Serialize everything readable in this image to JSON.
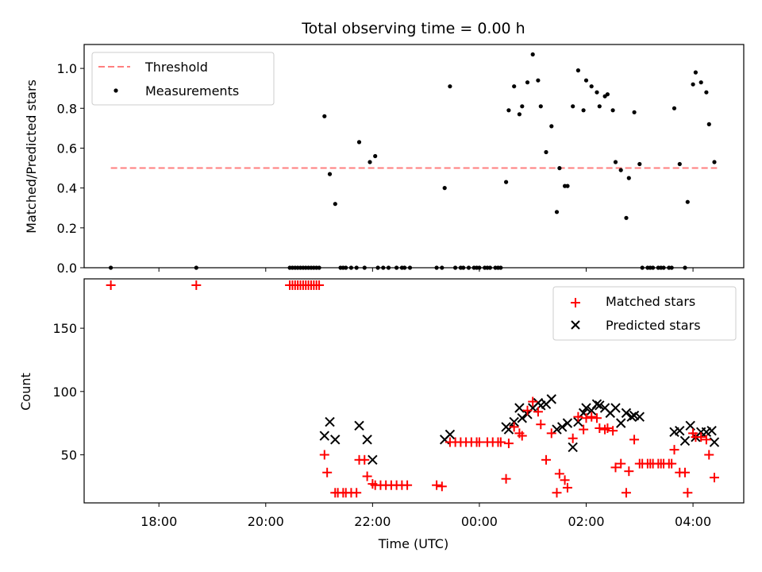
{
  "chart_data": [
    {
      "type": "scatter",
      "title": "Total observing time = 0.00 h",
      "xlabel": "",
      "ylabel": "Matched/Predicted stars",
      "x_unit": "hours UTC (values past 24 are after midnight)",
      "xlim": [
        16.6,
        28.95
      ],
      "ylim": [
        0,
        1.12
      ],
      "yticks": [
        "0.0",
        "0.2",
        "0.4",
        "0.6",
        "0.8",
        "1.0"
      ],
      "legend_position": "top-left",
      "threshold": {
        "name": "Threshold",
        "value": 0.5,
        "x_range": [
          17.1,
          28.45
        ],
        "color": "#ff7f7f",
        "style": "dashed"
      },
      "series": [
        {
          "name": "Measurements",
          "color": "#000000",
          "marker": "dot",
          "points": [
            [
              17.1,
              0
            ],
            [
              18.7,
              0
            ],
            [
              20.45,
              0
            ],
            [
              20.5,
              0
            ],
            [
              20.55,
              0
            ],
            [
              20.6,
              0
            ],
            [
              20.65,
              0
            ],
            [
              20.7,
              0
            ],
            [
              20.75,
              0
            ],
            [
              20.8,
              0
            ],
            [
              20.85,
              0
            ],
            [
              20.9,
              0
            ],
            [
              20.95,
              0
            ],
            [
              21.0,
              0
            ],
            [
              21.1,
              0.76
            ],
            [
              21.2,
              0.47
            ],
            [
              21.3,
              0.32
            ],
            [
              21.4,
              0
            ],
            [
              21.45,
              0
            ],
            [
              21.5,
              0
            ],
            [
              21.6,
              0
            ],
            [
              21.7,
              0
            ],
            [
              21.75,
              0.63
            ],
            [
              21.85,
              0
            ],
            [
              21.95,
              0.53
            ],
            [
              22.05,
              0.56
            ],
            [
              22.1,
              0
            ],
            [
              22.2,
              0
            ],
            [
              22.3,
              0
            ],
            [
              22.45,
              0
            ],
            [
              22.55,
              0
            ],
            [
              22.6,
              0
            ],
            [
              22.7,
              0
            ],
            [
              23.2,
              0
            ],
            [
              23.3,
              0
            ],
            [
              23.35,
              0.4
            ],
            [
              23.45,
              0.91
            ],
            [
              23.55,
              0
            ],
            [
              23.65,
              0
            ],
            [
              23.7,
              0
            ],
            [
              23.8,
              0
            ],
            [
              23.9,
              0
            ],
            [
              23.95,
              0
            ],
            [
              24.0,
              0
            ],
            [
              24.1,
              0
            ],
            [
              24.15,
              0
            ],
            [
              24.2,
              0
            ],
            [
              24.3,
              0
            ],
            [
              24.35,
              0
            ],
            [
              24.4,
              0
            ],
            [
              24.5,
              0.43
            ],
            [
              24.55,
              0.79
            ],
            [
              24.65,
              0.91
            ],
            [
              24.75,
              0.77
            ],
            [
              24.8,
              0.81
            ],
            [
              24.9,
              0.93
            ],
            [
              25.0,
              1.07
            ],
            [
              25.1,
              0.94
            ],
            [
              25.15,
              0.81
            ],
            [
              25.25,
              0.58
            ],
            [
              25.35,
              0.71
            ],
            [
              25.45,
              0.28
            ],
            [
              25.5,
              0.5
            ],
            [
              25.6,
              0.41
            ],
            [
              25.65,
              0.41
            ],
            [
              25.75,
              0.81
            ],
            [
              25.85,
              0.99
            ],
            [
              25.95,
              0.79
            ],
            [
              26.0,
              0.94
            ],
            [
              26.1,
              0.91
            ],
            [
              26.2,
              0.88
            ],
            [
              26.25,
              0.81
            ],
            [
              26.35,
              0.86
            ],
            [
              26.4,
              0.87
            ],
            [
              26.5,
              0.79
            ],
            [
              26.55,
              0.53
            ],
            [
              26.65,
              0.49
            ],
            [
              26.75,
              0.25
            ],
            [
              26.8,
              0.45
            ],
            [
              26.9,
              0.78
            ],
            [
              27.0,
              0.52
            ],
            [
              27.05,
              0
            ],
            [
              27.15,
              0
            ],
            [
              27.2,
              0
            ],
            [
              27.25,
              0
            ],
            [
              27.35,
              0
            ],
            [
              27.4,
              0
            ],
            [
              27.45,
              0
            ],
            [
              27.55,
              0
            ],
            [
              27.6,
              0
            ],
            [
              27.65,
              0.8
            ],
            [
              27.75,
              0.52
            ],
            [
              27.85,
              0
            ],
            [
              27.9,
              0.33
            ],
            [
              28.0,
              0.92
            ],
            [
              28.05,
              0.98
            ],
            [
              28.15,
              0.93
            ],
            [
              28.25,
              0.88
            ],
            [
              28.3,
              0.72
            ],
            [
              28.4,
              0.53
            ]
          ]
        }
      ]
    },
    {
      "type": "scatter",
      "title": "",
      "xlabel": "Time (UTC)",
      "ylabel": "Count",
      "x_unit": "hours UTC (values past 24 are after midnight)",
      "xlim": [
        16.6,
        28.95
      ],
      "ylim": [
        12,
        189
      ],
      "yticks": [
        "50",
        "100",
        "150"
      ],
      "xticks": [
        "18:00",
        "20:00",
        "22:00",
        "00:00",
        "02:00",
        "04:00"
      ],
      "legend_position": "top-right",
      "series": [
        {
          "name": "Matched stars",
          "color": "#ff0000",
          "marker": "plus",
          "points": [
            [
              17.1,
              184
            ],
            [
              18.7,
              184
            ],
            [
              20.45,
              184
            ],
            [
              20.5,
              184
            ],
            [
              20.55,
              184
            ],
            [
              20.6,
              184
            ],
            [
              20.65,
              184
            ],
            [
              20.7,
              184
            ],
            [
              20.75,
              184
            ],
            [
              20.8,
              184
            ],
            [
              20.85,
              184
            ],
            [
              20.9,
              184
            ],
            [
              20.95,
              184
            ],
            [
              21.0,
              184
            ],
            [
              21.1,
              50
            ],
            [
              21.15,
              36
            ],
            [
              21.3,
              20
            ],
            [
              21.35,
              20
            ],
            [
              21.45,
              20
            ],
            [
              21.5,
              20
            ],
            [
              21.6,
              20
            ],
            [
              21.7,
              20
            ],
            [
              21.75,
              46
            ],
            [
              21.85,
              46
            ],
            [
              21.9,
              33
            ],
            [
              22.0,
              27
            ],
            [
              22.05,
              26
            ],
            [
              22.15,
              26
            ],
            [
              22.25,
              26
            ],
            [
              22.35,
              26
            ],
            [
              22.45,
              26
            ],
            [
              22.55,
              26
            ],
            [
              22.65,
              26
            ],
            [
              23.2,
              26
            ],
            [
              23.3,
              25
            ],
            [
              23.45,
              60
            ],
            [
              23.55,
              60
            ],
            [
              23.65,
              60
            ],
            [
              23.75,
              60
            ],
            [
              23.85,
              60
            ],
            [
              23.95,
              60
            ],
            [
              24.0,
              60
            ],
            [
              24.15,
              60
            ],
            [
              24.25,
              60
            ],
            [
              24.35,
              60
            ],
            [
              24.4,
              60
            ],
            [
              24.5,
              31
            ],
            [
              24.55,
              59
            ],
            [
              24.65,
              72
            ],
            [
              24.75,
              67
            ],
            [
              24.8,
              65
            ],
            [
              24.9,
              85
            ],
            [
              25.0,
              92
            ],
            [
              25.1,
              84
            ],
            [
              25.15,
              74
            ],
            [
              25.25,
              46
            ],
            [
              25.35,
              67
            ],
            [
              25.45,
              20
            ],
            [
              25.5,
              35
            ],
            [
              25.6,
              30
            ],
            [
              25.65,
              24
            ],
            [
              25.75,
              63
            ],
            [
              25.85,
              80
            ],
            [
              25.95,
              70
            ],
            [
              26.0,
              79
            ],
            [
              26.1,
              80
            ],
            [
              26.2,
              79
            ],
            [
              26.25,
              71
            ],
            [
              26.35,
              70
            ],
            [
              26.4,
              71
            ],
            [
              26.5,
              69
            ],
            [
              26.55,
              40
            ],
            [
              26.65,
              43
            ],
            [
              26.75,
              20
            ],
            [
              26.8,
              37
            ],
            [
              26.9,
              62
            ],
            [
              27.0,
              43
            ],
            [
              27.05,
              43
            ],
            [
              27.15,
              43
            ],
            [
              27.2,
              43
            ],
            [
              27.25,
              43
            ],
            [
              27.35,
              43
            ],
            [
              27.4,
              43
            ],
            [
              27.45,
              43
            ],
            [
              27.55,
              43
            ],
            [
              27.6,
              43
            ],
            [
              27.65,
              54
            ],
            [
              27.75,
              36
            ],
            [
              27.85,
              36
            ],
            [
              27.9,
              20
            ],
            [
              28.0,
              67
            ],
            [
              28.05,
              64
            ],
            [
              28.15,
              64
            ],
            [
              28.25,
              62
            ],
            [
              28.3,
              50
            ],
            [
              28.4,
              32
            ]
          ]
        },
        {
          "name": "Predicted stars",
          "color": "#000000",
          "marker": "x",
          "points": [
            [
              21.1,
              65
            ],
            [
              21.2,
              76
            ],
            [
              21.3,
              62
            ],
            [
              21.75,
              73
            ],
            [
              21.9,
              62
            ],
            [
              22.0,
              46
            ],
            [
              23.35,
              62
            ],
            [
              23.45,
              66
            ],
            [
              24.5,
              72
            ],
            [
              24.55,
              70
            ],
            [
              24.65,
              76
            ],
            [
              24.75,
              87
            ],
            [
              24.8,
              79
            ],
            [
              24.9,
              82
            ],
            [
              25.0,
              87
            ],
            [
              25.1,
              91
            ],
            [
              25.15,
              89
            ],
            [
              25.25,
              90
            ],
            [
              25.35,
              94
            ],
            [
              25.45,
              70
            ],
            [
              25.55,
              72
            ],
            [
              25.65,
              75
            ],
            [
              25.75,
              56
            ],
            [
              25.85,
              76
            ],
            [
              25.95,
              83
            ],
            [
              26.0,
              87
            ],
            [
              26.1,
              85
            ],
            [
              26.2,
              90
            ],
            [
              26.25,
              89
            ],
            [
              26.35,
              87
            ],
            [
              26.45,
              83
            ],
            [
              26.55,
              87
            ],
            [
              26.65,
              75
            ],
            [
              26.75,
              83
            ],
            [
              26.85,
              80
            ],
            [
              26.9,
              81
            ],
            [
              27.0,
              80
            ],
            [
              27.65,
              68
            ],
            [
              27.75,
              69
            ],
            [
              27.85,
              61
            ],
            [
              27.95,
              73
            ],
            [
              28.05,
              64
            ],
            [
              28.15,
              68
            ],
            [
              28.25,
              68
            ],
            [
              28.35,
              69
            ],
            [
              28.4,
              60
            ]
          ]
        }
      ]
    }
  ]
}
